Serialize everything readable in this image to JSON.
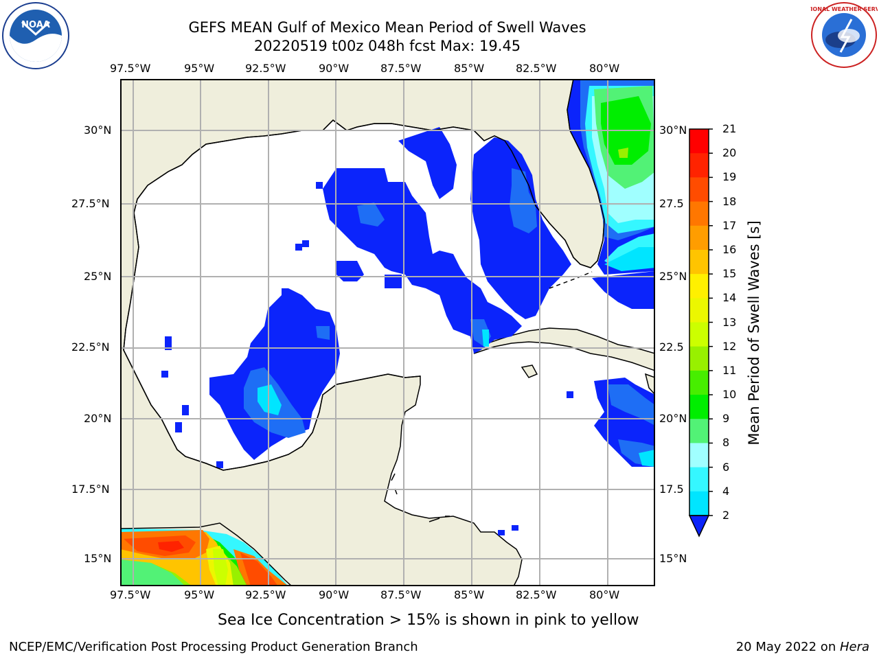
{
  "header": {
    "title_line1": "GEFS MEAN Gulf of Mexico Mean Period of Swell Waves",
    "title_line2": "20220519 t00z 048h fcst   Max: 19.45"
  },
  "logos": {
    "left": "noara-logo",
    "left_text": "NOAA",
    "right": "nws-logo",
    "right_text": "NATIONAL WEATHER SERVICE"
  },
  "map": {
    "region": "Gulf of Mexico",
    "lon_ticks": [
      "97.5°W",
      "95°W",
      "92.5°W",
      "90°W",
      "87.5°W",
      "85°W",
      "82.5°W",
      "80°W"
    ],
    "lat_ticks_left": [
      "30°N",
      "27.5°N",
      "25°N",
      "22.5°N",
      "20°N",
      "17.5°N",
      "15°N"
    ],
    "lat_ticks_right": [
      "30°N",
      "27.5",
      "25°N",
      "22.5",
      "20°N",
      "17.5",
      "15°N"
    ],
    "colors": {
      "land": "#efeedc",
      "ocean_no_data": "#ffffff",
      "grid": "#b0b0b0"
    }
  },
  "colorbar": {
    "label": "Mean Period of Swell Waves [s]",
    "ticks": [
      "2",
      "4",
      "6",
      "8",
      "9",
      "10",
      "11",
      "12",
      "13",
      "14",
      "15",
      "16",
      "17",
      "18",
      "19",
      "20",
      "21"
    ],
    "colors": [
      "#0b24fb",
      "#1e6ef5",
      "#00e5ff",
      "#35f7ff",
      "#a0ffff",
      "#52f276",
      "#00ee00",
      "#47ee00",
      "#98f000",
      "#ccff00",
      "#ecf700",
      "#fff000",
      "#ffc400",
      "#ff9d00",
      "#ff7700",
      "#ff4c00",
      "#ff2300",
      "#ff0000"
    ],
    "extend": "min"
  },
  "note": "Sea Ice Concentration > 15% is shown in pink to yellow",
  "footer": {
    "left": "NCEP/EMC/Verification Post Processing Product Generation Branch",
    "right_prefix": "20 May 2022 on ",
    "right_machine": "Hera"
  }
}
